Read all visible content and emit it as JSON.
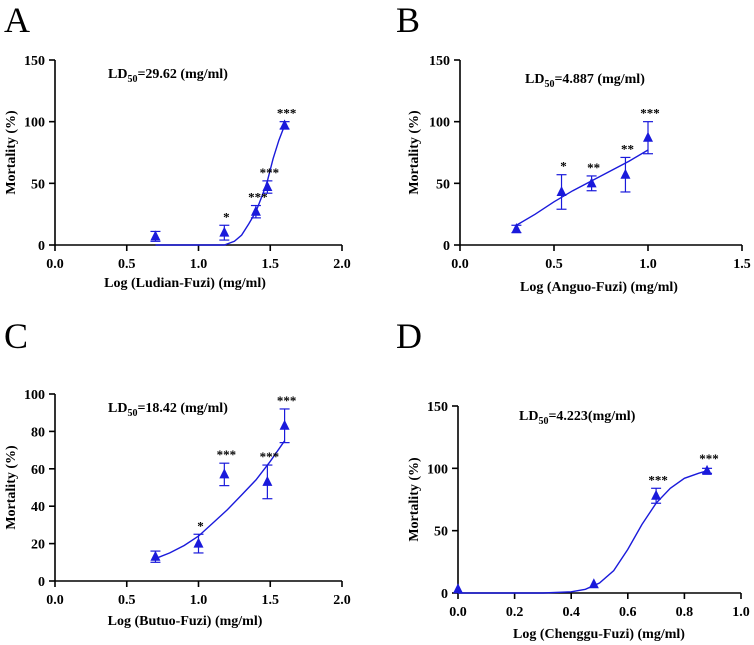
{
  "chart_data": [
    {
      "type": "scatter",
      "panel": "A",
      "ld50_prefix": "LD",
      "ld50_sub": "50",
      "ld50_value": "=29.62 (mg/ml)",
      "xlabel": "Log (Ludian-Fuzi) (mg/ml)",
      "ylabel": "Mortality (%)",
      "xlim": [
        0,
        2.0
      ],
      "ylim": [
        0,
        150
      ],
      "xticks": [
        0,
        0.5,
        1.0,
        1.5,
        2.0
      ],
      "xtick_labels": [
        "0.0",
        "0.5",
        "1.0",
        "1.5",
        "2.0"
      ],
      "yticks": [
        0,
        50,
        100,
        150
      ],
      "ytick_labels": [
        "0",
        "50",
        "100",
        "150"
      ],
      "points": [
        {
          "x": 0.7,
          "y": 7,
          "err": 4,
          "sig": ""
        },
        {
          "x": 1.18,
          "y": 10,
          "err": 6,
          "sig": "*"
        },
        {
          "x": 1.4,
          "y": 27,
          "err": 5,
          "sig": "***"
        },
        {
          "x": 1.48,
          "y": 47,
          "err": 5,
          "sig": "***"
        },
        {
          "x": 1.6,
          "y": 97,
          "err": 3,
          "sig": "***"
        }
      ],
      "curve": {
        "x": [
          1.18,
          1.25,
          1.3,
          1.35,
          1.4,
          1.45,
          1.48,
          1.52,
          1.56,
          1.6
        ],
        "y": [
          0,
          3,
          8,
          17,
          27,
          42,
          52,
          70,
          85,
          97
        ],
        "x_start": 0.7
      }
    },
    {
      "type": "scatter",
      "panel": "B",
      "ld50_prefix": "LD",
      "ld50_sub": "50",
      "ld50_value": "=4.887 (mg/ml)",
      "xlabel": "Log (Anguo-Fuzi) (mg/ml)",
      "ylabel": "Mortality (%)",
      "xlim": [
        0,
        1.5
      ],
      "ylim": [
        0,
        150
      ],
      "xticks": [
        0,
        0.5,
        1.0,
        1.5
      ],
      "xtick_labels": [
        "0.0",
        "0.5",
        "1.0",
        "1.5"
      ],
      "yticks": [
        0,
        50,
        100,
        150
      ],
      "ytick_labels": [
        "0",
        "50",
        "100",
        "150"
      ],
      "points": [
        {
          "x": 0.3,
          "y": 13,
          "err": 3,
          "sig": ""
        },
        {
          "x": 0.54,
          "y": 43,
          "err": 14,
          "sig": "*"
        },
        {
          "x": 0.7,
          "y": 50,
          "err": 6,
          "sig": "**"
        },
        {
          "x": 0.88,
          "y": 57,
          "err": 14,
          "sig": "**"
        },
        {
          "x": 1.0,
          "y": 87,
          "err": 13,
          "sig": "***"
        }
      ],
      "curve": {
        "x": [
          0.3,
          0.4,
          0.5,
          0.6,
          0.7,
          0.8,
          0.9,
          1.0
        ],
        "y": [
          16,
          25,
          35,
          44,
          52,
          60,
          68,
          77
        ]
      }
    },
    {
      "type": "scatter",
      "panel": "C",
      "ld50_prefix": "LD",
      "ld50_sub": "50",
      "ld50_value": "=18.42 (mg/ml)",
      "xlabel": "Log (Butuo-Fuzi) (mg/ml)",
      "ylabel": "Mortality (%)",
      "xlim": [
        0,
        2.0
      ],
      "ylim": [
        0,
        100
      ],
      "xticks": [
        0,
        0.5,
        1.0,
        1.5,
        2.0
      ],
      "xtick_labels": [
        "0.0",
        "0.5",
        "1.0",
        "1.5",
        "2.0"
      ],
      "yticks": [
        0,
        20,
        40,
        60,
        80,
        100
      ],
      "ytick_labels": [
        "0",
        "20",
        "40",
        "60",
        "80",
        "100"
      ],
      "points": [
        {
          "x": 0.7,
          "y": 13,
          "err": 3,
          "sig": ""
        },
        {
          "x": 1.0,
          "y": 20,
          "err": 5,
          "sig": "*"
        },
        {
          "x": 1.18,
          "y": 57,
          "err": 6,
          "sig": "***"
        },
        {
          "x": 1.48,
          "y": 53,
          "err": 9,
          "sig": "***"
        },
        {
          "x": 1.6,
          "y": 83,
          "err": 9,
          "sig": "***"
        }
      ],
      "curve": {
        "x": [
          0.7,
          0.8,
          0.9,
          1.0,
          1.1,
          1.2,
          1.3,
          1.4,
          1.5,
          1.6
        ],
        "y": [
          12,
          15,
          19,
          24,
          31,
          38,
          46,
          54,
          64,
          75
        ]
      }
    },
    {
      "type": "scatter",
      "panel": "D",
      "ld50_prefix": "LD",
      "ld50_sub": "50",
      "ld50_value": "=4.223(mg/ml)",
      "xlabel": "Log (Chenggu-Fuzi) (mg/ml)",
      "ylabel": "Mortality (%)",
      "xlim": [
        0,
        1.0
      ],
      "ylim": [
        0,
        150
      ],
      "xticks": [
        0,
        0.2,
        0.4,
        0.6,
        0.8,
        1.0
      ],
      "xtick_labels": [
        "0.0",
        "0.2",
        "0.4",
        "0.6",
        "0.8",
        "1.0"
      ],
      "yticks": [
        0,
        50,
        100,
        150
      ],
      "ytick_labels": [
        "0",
        "50",
        "100",
        "150"
      ],
      "points": [
        {
          "x": 0.0,
          "y": 3,
          "err": 0,
          "sig": ""
        },
        {
          "x": 0.48,
          "y": 7,
          "err": 0,
          "sig": ""
        },
        {
          "x": 0.7,
          "y": 78,
          "err": 6,
          "sig": "***"
        },
        {
          "x": 0.88,
          "y": 98,
          "err": 2,
          "sig": "***"
        }
      ],
      "curve": {
        "x": [
          0.0,
          0.3,
          0.4,
          0.45,
          0.5,
          0.55,
          0.6,
          0.65,
          0.7,
          0.75,
          0.8,
          0.85,
          0.88
        ],
        "y": [
          0,
          0,
          1,
          3,
          8,
          18,
          35,
          55,
          72,
          84,
          92,
          96,
          98
        ]
      }
    }
  ],
  "colors": {
    "accent": "#1a1adb",
    "axis": "#000000"
  }
}
